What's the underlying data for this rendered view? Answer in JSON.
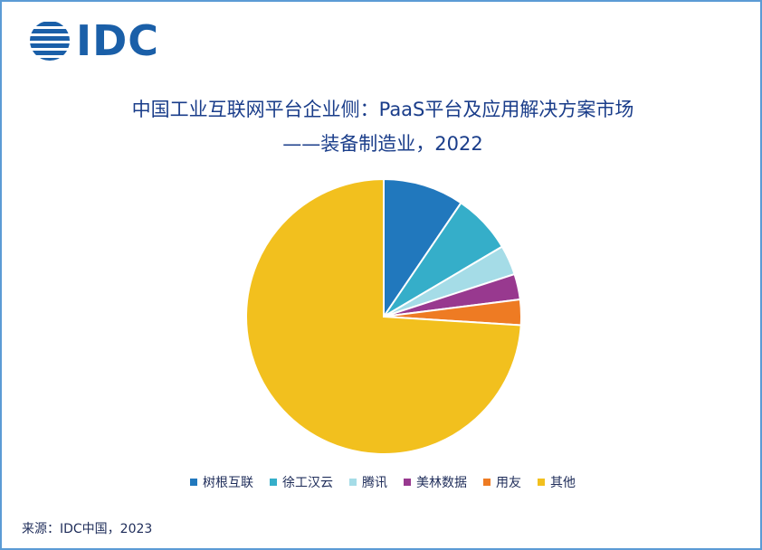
{
  "brand": {
    "logo_text": "IDC",
    "color": "#1a5fa8"
  },
  "title": {
    "line1": "中国工业互联网平台企业侧：PaaS平台及应用解决方案市场",
    "line2": "——装备制造业，2022"
  },
  "chart_data": {
    "type": "pie",
    "categories": [
      "树根互联",
      "徐工汉云",
      "腾讯",
      "美林数据",
      "用友",
      "其他"
    ],
    "values": [
      9.5,
      7.0,
      3.5,
      3.0,
      3.0,
      74.0
    ],
    "colors": [
      "#2178bd",
      "#35aec9",
      "#a5dce7",
      "#98398f",
      "#ee7b23",
      "#f2c01e"
    ],
    "start_angle_deg": 0,
    "direction": "clockwise",
    "legend_position": "bottom"
  },
  "source": "来源：IDC中国，2023"
}
